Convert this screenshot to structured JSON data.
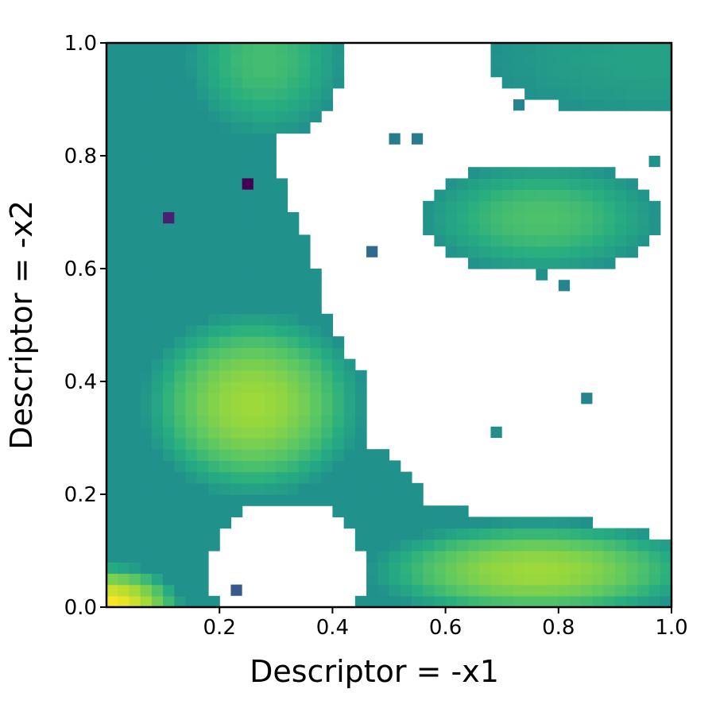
{
  "chart_data": {
    "type": "heatmap",
    "title": "",
    "xlabel": "Descriptor = -x1",
    "ylabel": "Descriptor = -x2",
    "xlim": [
      0.0,
      1.0
    ],
    "ylim": [
      0.0,
      1.0
    ],
    "x_ticks": [
      "0.2",
      "0.4",
      "0.6",
      "0.8",
      "1.0"
    ],
    "y_ticks": [
      "0.0",
      "0.2",
      "0.4",
      "0.6",
      "0.8",
      "1.0"
    ],
    "grid": false,
    "colormap": "viridis",
    "empty_color": "#ffffff",
    "grid_resolution": 50,
    "value_note": "relative intensity 0-1 (no colorbar shown)",
    "regions": [
      {
        "cx": 0.0,
        "cy": 0.0,
        "rx": 0.14,
        "ry": 0.08,
        "peak": 1.0,
        "shape": "blob"
      },
      {
        "cx": 0.26,
        "cy": 0.36,
        "rx": 0.2,
        "ry": 0.17,
        "peak": 0.86,
        "shape": "blob"
      },
      {
        "cx": 0.76,
        "cy": 0.065,
        "rx": 0.3,
        "ry": 0.09,
        "peak": 0.86,
        "shape": "blob"
      },
      {
        "cx": 0.77,
        "cy": 0.69,
        "rx": 0.21,
        "ry": 0.1,
        "peak": 0.72,
        "shape": "blob"
      },
      {
        "cx": 0.28,
        "cy": 0.97,
        "rx": 0.14,
        "ry": 0.14,
        "peak": 0.7,
        "shape": "blob"
      },
      {
        "cx": 0.98,
        "cy": 0.97,
        "rx": 0.3,
        "ry": 0.1,
        "peak": 0.58,
        "shape": "blob"
      }
    ],
    "isolated_cells": [
      {
        "x": 0.25,
        "y": 0.75,
        "value": 0.0
      },
      {
        "x": 0.11,
        "y": 0.69,
        "value": 0.12
      },
      {
        "x": 0.47,
        "y": 0.63,
        "value": 0.35
      },
      {
        "x": 0.51,
        "y": 0.83,
        "value": 0.42
      },
      {
        "x": 0.55,
        "y": 0.83,
        "value": 0.42
      },
      {
        "x": 0.73,
        "y": 0.89,
        "value": 0.45
      },
      {
        "x": 0.97,
        "y": 0.79,
        "value": 0.5
      },
      {
        "x": 0.81,
        "y": 0.57,
        "value": 0.45
      },
      {
        "x": 0.85,
        "y": 0.37,
        "value": 0.45
      },
      {
        "x": 0.69,
        "y": 0.31,
        "value": 0.48
      },
      {
        "x": 0.23,
        "y": 0.03,
        "value": 0.28
      }
    ]
  }
}
